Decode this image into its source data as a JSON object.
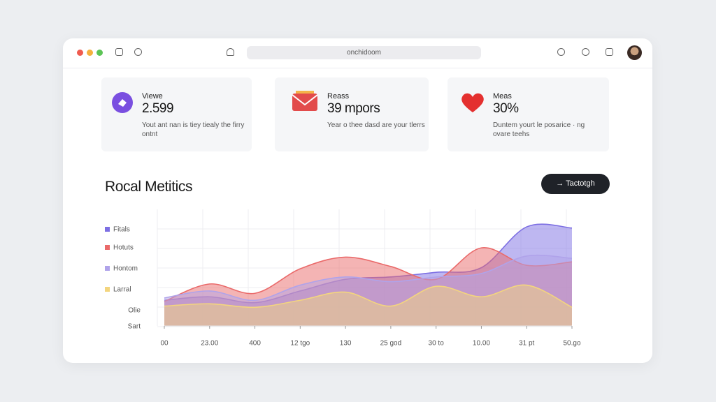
{
  "browser": {
    "address": "onchidoom"
  },
  "cards": [
    {
      "label": "Viewe",
      "value": "2.599",
      "description": "Yout ant nan is tiey tiealy the firry ontnt"
    },
    {
      "label": "Reass",
      "value": "39 mpors",
      "description": "Year o thee dasd are your tlerrs"
    },
    {
      "label": "Meas",
      "value": "30%",
      "description": "Duntem yourt le posarice · ng ovare teehs"
    }
  ],
  "section_title": "Rocal Metitics",
  "button": "Tactotgh",
  "chart_data": {
    "type": "area",
    "categories": [
      "00",
      "23.00",
      "400",
      "12 tgo",
      "130",
      "25 god",
      "30 to",
      "10.00",
      "31 pt",
      "50.go"
    ],
    "y_labels": [
      "Olie",
      "Sart"
    ],
    "ylim": [
      0,
      100
    ],
    "grid": true,
    "series": [
      {
        "name": "Fitals",
        "color": "#7d6fe3",
        "values": [
          22,
          25,
          20,
          30,
          40,
          42,
          46,
          50,
          85,
          84
        ]
      },
      {
        "name": "Hotuts",
        "color": "#ea6a6a",
        "values": [
          21,
          36,
          28,
          49,
          59,
          51,
          40,
          67,
          52,
          55
        ]
      },
      {
        "name": "Hontom",
        "color": "#b0a3ea",
        "values": [
          24,
          30,
          22,
          35,
          42,
          38,
          42,
          45,
          60,
          58
        ]
      },
      {
        "name": "Larral",
        "color": "#f3d57e",
        "values": [
          17,
          19,
          16,
          22,
          29,
          17,
          34,
          25,
          35,
          16
        ]
      }
    ]
  }
}
